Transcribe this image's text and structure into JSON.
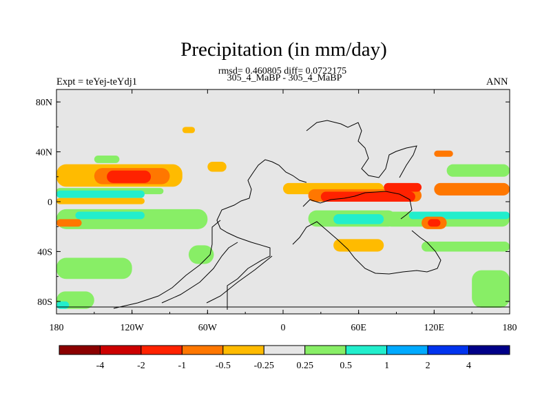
{
  "chart_data": {
    "type": "heatmap",
    "title": "Precipitation (in mm/day)",
    "stats_line": "rmsd= 0.460805 diff= 0.0722175",
    "subtitle": "305_4_MaBP - 305_4_MaBP",
    "left_label": "Expt = teYej-teYdj1",
    "right_label": "ANN",
    "x_axis": {
      "range": [
        -180,
        180
      ],
      "ticks": [
        {
          "value": -180,
          "label": "180"
        },
        {
          "value": -120,
          "label": "120W"
        },
        {
          "value": -60,
          "label": "60W"
        },
        {
          "value": 0,
          "label": "0"
        },
        {
          "value": 60,
          "label": "60E"
        },
        {
          "value": 120,
          "label": "120E"
        },
        {
          "value": 180,
          "label": "180"
        }
      ]
    },
    "y_axis": {
      "range": [
        -90,
        90
      ],
      "ticks": [
        {
          "value": 80,
          "label": "80N"
        },
        {
          "value": 40,
          "label": "40N"
        },
        {
          "value": 0,
          "label": "0"
        },
        {
          "value": -40,
          "label": "40S"
        },
        {
          "value": -80,
          "label": "80S"
        }
      ]
    },
    "colorbar": {
      "colors": [
        "#8b0000",
        "#cc0000",
        "#ff2200",
        "#ff7700",
        "#ffbb00",
        "#e6e6e6",
        "#88ee66",
        "#22eecc",
        "#00aaff",
        "#0033ee",
        "#000088"
      ],
      "labels": [
        "-4",
        "-2",
        "-1",
        "-0.5",
        "-0.25",
        "0.25",
        "0.5",
        "1",
        "2",
        "4"
      ]
    },
    "background_color": "#e6e6e6",
    "anomaly_regions": [
      {
        "color": "#ffbb00",
        "lon": [
          -180,
          -80
        ],
        "lat": [
          12,
          30
        ]
      },
      {
        "color": "#ff7700",
        "lon": [
          -150,
          -90
        ],
        "lat": [
          14,
          27
        ]
      },
      {
        "color": "#ff2200",
        "lon": [
          -140,
          -105
        ],
        "lat": [
          15,
          25
        ]
      },
      {
        "color": "#88ee66",
        "lon": [
          -180,
          -95
        ],
        "lat": [
          6,
          11
        ]
      },
      {
        "color": "#22eecc",
        "lon": [
          -180,
          -110
        ],
        "lat": [
          3,
          9
        ]
      },
      {
        "color": "#ffbb00",
        "lon": [
          -180,
          -110
        ],
        "lat": [
          -2,
          3
        ]
      },
      {
        "color": "#88ee66",
        "lon": [
          -180,
          -60
        ],
        "lat": [
          -22,
          -6
        ]
      },
      {
        "color": "#22eecc",
        "lon": [
          -165,
          -110
        ],
        "lat": [
          -14,
          -8
        ]
      },
      {
        "color": "#ff7700",
        "lon": [
          -180,
          -160
        ],
        "lat": [
          -20,
          -14
        ]
      },
      {
        "color": "#88ee66",
        "lon": [
          -180,
          -120
        ],
        "lat": [
          -62,
          -45
        ]
      },
      {
        "color": "#88ee66",
        "lon": [
          -180,
          -150
        ],
        "lat": [
          -86,
          -72
        ]
      },
      {
        "color": "#22eecc",
        "lon": [
          -180,
          -170
        ],
        "lat": [
          -86,
          -80
        ]
      },
      {
        "color": "#88ee66",
        "lon": [
          -150,
          -130
        ],
        "lat": [
          31,
          37
        ]
      },
      {
        "color": "#ffbb00",
        "lon": [
          -80,
          -70
        ],
        "lat": [
          55,
          60
        ]
      },
      {
        "color": "#ffbb00",
        "lon": [
          -60,
          -45
        ],
        "lat": [
          24,
          32
        ]
      },
      {
        "color": "#88ee66",
        "lon": [
          -75,
          -55
        ],
        "lat": [
          -50,
          -35
        ]
      },
      {
        "color": "#ffbb00",
        "lon": [
          0,
          80
        ],
        "lat": [
          6,
          15
        ]
      },
      {
        "color": "#ff7700",
        "lon": [
          20,
          110
        ],
        "lat": [
          0,
          10
        ]
      },
      {
        "color": "#ff2200",
        "lon": [
          30,
          105
        ],
        "lat": [
          0,
          8
        ]
      },
      {
        "color": "#88ee66",
        "lon": [
          20,
          90
        ],
        "lat": [
          -20,
          -7
        ]
      },
      {
        "color": "#22eecc",
        "lon": [
          40,
          80
        ],
        "lat": [
          -18,
          -10
        ]
      },
      {
        "color": "#ffbb00",
        "lon": [
          40,
          80
        ],
        "lat": [
          -40,
          -30
        ]
      },
      {
        "color": "#88ee66",
        "lon": [
          80,
          180
        ],
        "lat": [
          -20,
          -8
        ]
      },
      {
        "color": "#22eecc",
        "lon": [
          100,
          180
        ],
        "lat": [
          -14,
          -8
        ]
      },
      {
        "color": "#ff7700",
        "lon": [
          110,
          130
        ],
        "lat": [
          -22,
          -12
        ]
      },
      {
        "color": "#ff2200",
        "lon": [
          115,
          125
        ],
        "lat": [
          -20,
          -14
        ]
      },
      {
        "color": "#ff2200",
        "lon": [
          80,
          110
        ],
        "lat": [
          8,
          15
        ]
      },
      {
        "color": "#ff7700",
        "lon": [
          120,
          180
        ],
        "lat": [
          5,
          15
        ]
      },
      {
        "color": "#88ee66",
        "lon": [
          130,
          180
        ],
        "lat": [
          20,
          30
        ]
      },
      {
        "color": "#ff7700",
        "lon": [
          120,
          135
        ],
        "lat": [
          36,
          41
        ]
      },
      {
        "color": "#88ee66",
        "lon": [
          110,
          180
        ],
        "lat": [
          -40,
          -32
        ]
      },
      {
        "color": "#22eecc",
        "lon": [
          170,
          180
        ],
        "lat": [
          -82,
          -70
        ]
      },
      {
        "color": "#88ee66",
        "lon": [
          150,
          180
        ],
        "lat": [
          -85,
          -55
        ]
      }
    ]
  }
}
